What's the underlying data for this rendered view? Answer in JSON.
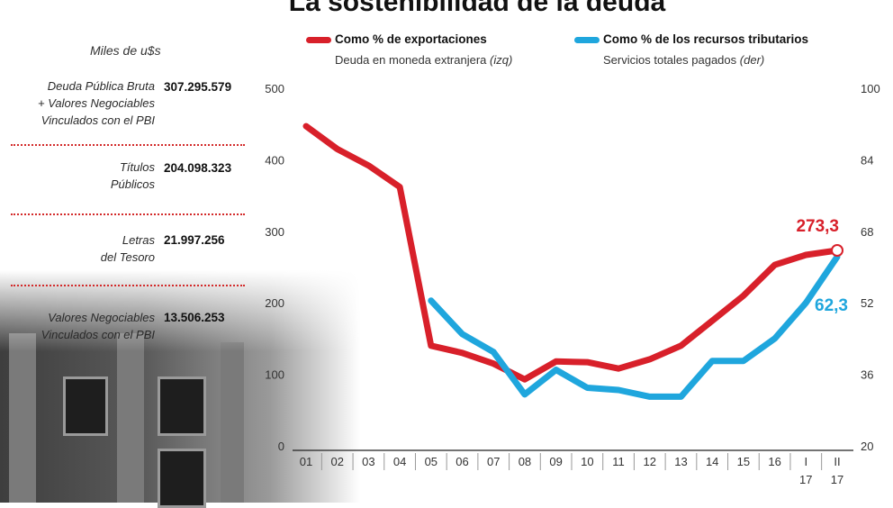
{
  "title": "La sostenibilidad de la deuda",
  "left_panel": {
    "units": "Miles de u$s",
    "rows": [
      {
        "label": [
          "Deuda Pública Bruta",
          "+ Valores Negociables",
          "Vinculados con el PBI"
        ],
        "value": "307.295.579"
      },
      {
        "label": [
          "Títulos",
          "Públicos"
        ],
        "value": "204.098.323"
      },
      {
        "label": [
          "Letras",
          "del Tesoro"
        ],
        "value": "21.997.256"
      },
      {
        "label": [
          "Valores Negociables",
          "Vinculados con el PBI"
        ],
        "value": "13.506.253"
      }
    ]
  },
  "legend": {
    "series1_title": "Como % de exportaciones",
    "series1_sub": "Deuda en moneda extranjera",
    "series1_axis": "(izq)",
    "series2_title": "Como % de los recursos tributarios",
    "series2_sub": "Servicios totales pagados",
    "series2_axis": "(der)"
  },
  "colors": {
    "red": "#d8202a",
    "blue": "#1fa6dd"
  },
  "chart_data": {
    "type": "line",
    "categories": [
      "01",
      "02",
      "03",
      "04",
      "05",
      "06",
      "07",
      "08",
      "09",
      "10",
      "11",
      "12",
      "13",
      "14",
      "15",
      "16",
      "I 17",
      "II 17"
    ],
    "category_lines": [
      [
        "01"
      ],
      [
        "02"
      ],
      [
        "03"
      ],
      [
        "04"
      ],
      [
        "05"
      ],
      [
        "06"
      ],
      [
        "07"
      ],
      [
        "08"
      ],
      [
        "09"
      ],
      [
        "10"
      ],
      [
        "11"
      ],
      [
        "12"
      ],
      [
        "13"
      ],
      [
        "14"
      ],
      [
        "15"
      ],
      [
        "16"
      ],
      [
        "I",
        "17"
      ],
      [
        "II",
        "17"
      ]
    ],
    "left_axis": {
      "ylim": [
        0,
        500
      ],
      "ticks": [
        "0",
        "100",
        "200",
        "300",
        "400",
        "500"
      ]
    },
    "right_axis": {
      "ylim": [
        20,
        100
      ],
      "ticks": [
        "20",
        "36",
        "52",
        "68",
        "84",
        "100"
      ]
    },
    "series": [
      {
        "name": "Como % de exportaciones",
        "axis": "left",
        "color": "#d8202a",
        "values": [
          447,
          415,
          392,
          362,
          140,
          130,
          115,
          93,
          118,
          117,
          108,
          121,
          140,
          175,
          210,
          253,
          267,
          273.3
        ]
      },
      {
        "name": "Como % de los recursos tributarios",
        "axis": "right",
        "color": "#1fa6dd",
        "values": [
          null,
          null,
          null,
          null,
          52.5,
          45,
          41,
          31.5,
          37,
          33,
          32.5,
          31,
          31,
          39,
          39,
          44,
          52,
          62.3
        ]
      }
    ],
    "end_labels": {
      "red": "273,3",
      "blue": "62,3"
    },
    "grid": false
  }
}
